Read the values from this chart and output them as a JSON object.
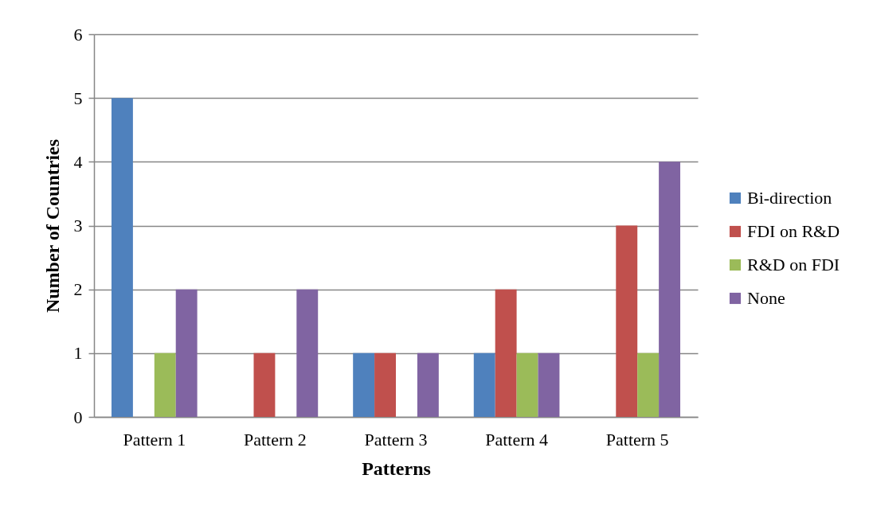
{
  "chart_data": {
    "type": "bar",
    "xlabel": "Patterns",
    "ylabel": "Number of Countries",
    "categories": [
      "Pattern 1",
      "Pattern 2",
      "Pattern 3",
      "Pattern 4",
      "Pattern 5"
    ],
    "series": [
      {
        "name": "Bi-direction",
        "color": "#4f81bd",
        "values": [
          5,
          0,
          1,
          1,
          0
        ]
      },
      {
        "name": "FDI on R&D",
        "color": "#c0504d",
        "values": [
          0,
          1,
          1,
          2,
          3
        ]
      },
      {
        "name": "R&D on FDI",
        "color": "#9bbb59",
        "values": [
          1,
          0,
          0,
          1,
          1
        ]
      },
      {
        "name": "None",
        "color": "#8064a2",
        "values": [
          2,
          2,
          1,
          1,
          4
        ]
      }
    ],
    "ylim": [
      0,
      6
    ],
    "yticks": [
      0,
      1,
      2,
      3,
      4,
      5,
      6
    ],
    "grid": "y",
    "legend": "right"
  }
}
